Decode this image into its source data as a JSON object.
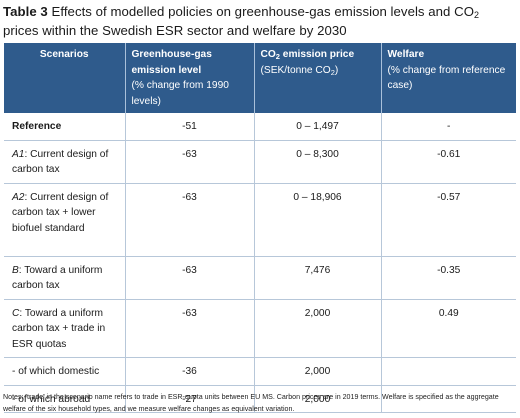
{
  "caption": {
    "label": "Table 3",
    "text_before_sub": " Effects of modelled policies on greenhouse-gas emission levels and CO",
    "sub": "2",
    "text_after_sub": " prices within the Swedish ESR sector and welfare by 2030"
  },
  "table": {
    "headers": {
      "scenarios": "Scenarios",
      "ghg_bold": "Greenhouse-gas emission level",
      "ghg_note": "(% change from 1990 levels)",
      "price_bold_a": "CO",
      "price_bold_sub": "2",
      "price_bold_b": " emission price",
      "price_note_a": "(SEK/tonne CO",
      "price_note_sub": "2",
      "price_note_b": ")",
      "welfare_bold": "Welfare",
      "welfare_note": "(% change from reference case)"
    },
    "rows": [
      {
        "label_em": "",
        "label": "Reference",
        "ghg": "-51",
        "price": "0 – 1,497",
        "welfare": "-"
      },
      {
        "label_em": "A1",
        "label": ": Current design of carbon tax",
        "ghg": "-63",
        "price": "0 – 8,300",
        "welfare": "-0.61"
      },
      {
        "label_em": "A2",
        "label": ": Current design of carbon tax + lower biofuel standard",
        "ghg": "-63",
        "price": "0 – 18,906",
        "welfare": "-0.57"
      },
      {
        "label_em": "B",
        "label": ": Toward a uniform carbon tax",
        "ghg": "-63",
        "price": "7,476",
        "welfare": "-0.35"
      },
      {
        "label_em": "C",
        "label": ": Toward a uniform carbon tax + trade in ESR quotas",
        "ghg": "-63",
        "price": "2,000",
        "welfare": "0.49"
      },
      {
        "label_em": "",
        "label": "- of which domestic",
        "ghg": "-36",
        "price": "2,000",
        "welfare": ""
      },
      {
        "label_em": "",
        "label": "- of which abroad",
        "ghg": "-27",
        "price": "2,000",
        "welfare": ""
      }
    ]
  },
  "notes": "Notes: ‘trade’ in the scenario name refers to trade in ESR-quota units between EU MS. Carbon prices are in 2019 terms. Welfare is specified as the aggregate welfare of the six household types, and we measure welfare changes as equivalent variation."
}
